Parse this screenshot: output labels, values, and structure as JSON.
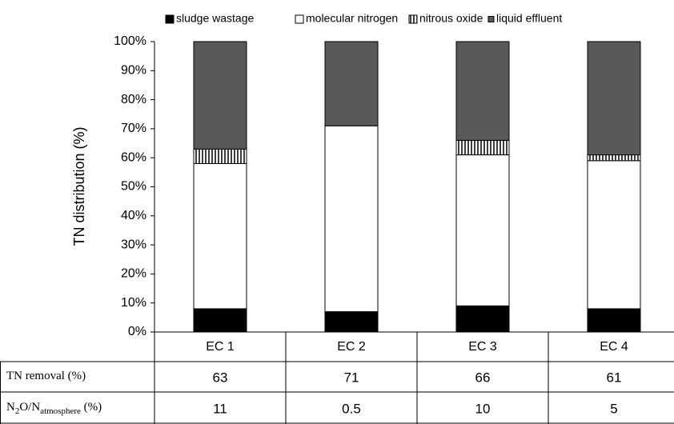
{
  "chart_data": {
    "type": "stacked_bar_percent",
    "ylabel": "TN distribution (%)",
    "categories": [
      "EC 1",
      "EC 2",
      "EC 3",
      "EC 4"
    ],
    "series": [
      {
        "name": "sludge wastage",
        "color": "#000000",
        "values": [
          8,
          7,
          9,
          8
        ]
      },
      {
        "name": "molecular nitrogen",
        "color": "#ffffff",
        "values": [
          50,
          64,
          52,
          51
        ]
      },
      {
        "name": "nitrous oxide",
        "color": "#ffffff",
        "hatch": "vertical",
        "values": [
          5,
          0,
          5,
          2
        ]
      },
      {
        "name": "liquid effluent",
        "color": "#595959",
        "values": [
          37,
          29,
          34,
          39
        ]
      }
    ],
    "ylim": [
      0,
      100
    ],
    "yticks": [
      {
        "value": 0,
        "label": "0%"
      },
      {
        "value": 10,
        "label": "10%"
      },
      {
        "value": 20,
        "label": "20%"
      },
      {
        "value": 30,
        "label": "30%"
      },
      {
        "value": 40,
        "label": "40%"
      },
      {
        "value": 50,
        "label": "50%"
      },
      {
        "value": 60,
        "label": "60%"
      },
      {
        "value": 70,
        "label": "70%"
      },
      {
        "value": 80,
        "label": "80%"
      },
      {
        "value": 90,
        "label": "90%"
      },
      {
        "value": 100,
        "label": "100%"
      }
    ],
    "grid": false,
    "legend": "top",
    "table": {
      "rows": [
        {
          "label": [
            "TN removal (%)"
          ],
          "values": [
            63,
            71,
            66,
            61
          ]
        },
        {
          "label": [
            "N",
            "2",
            "O/N",
            "atmosphere",
            " (%)"
          ],
          "values": [
            11,
            0.5,
            10,
            5
          ]
        }
      ]
    }
  }
}
